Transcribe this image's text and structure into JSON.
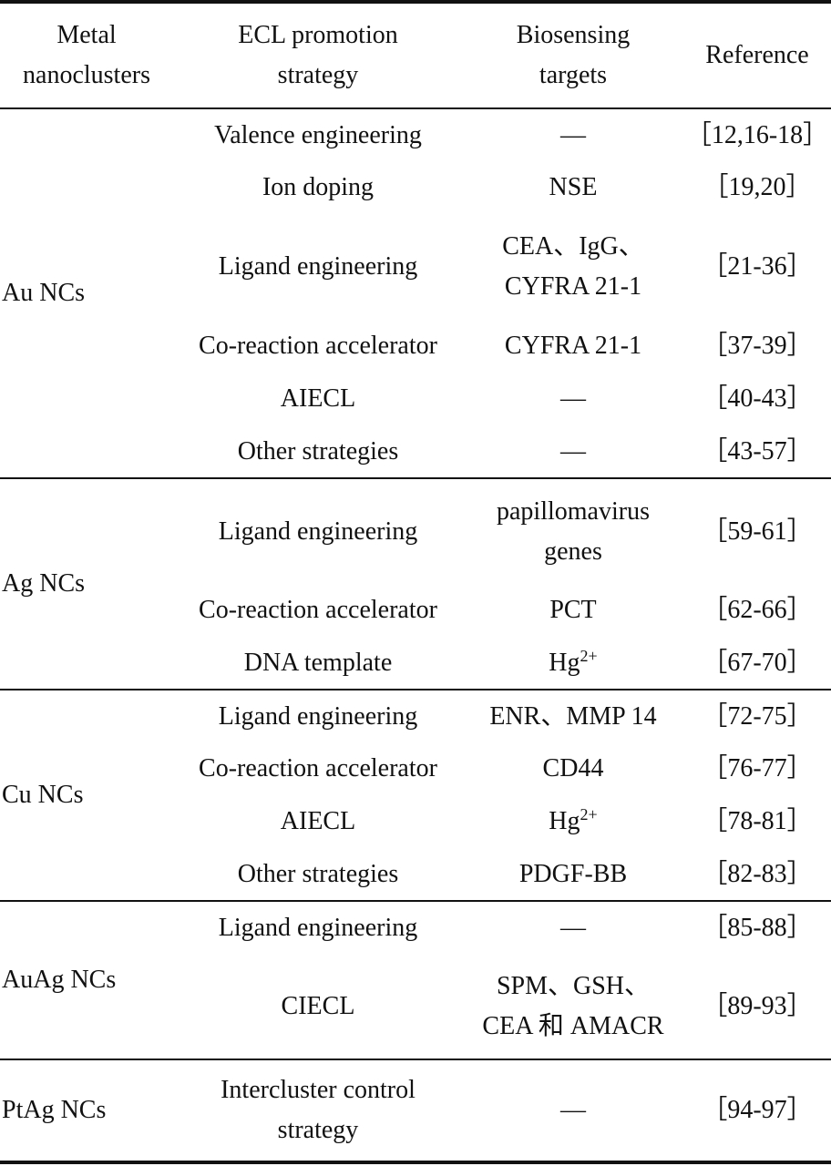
{
  "header": {
    "metal": "Metal nanoclusters",
    "strategy": "ECL promotion strategy",
    "targets": "Biosensing targets",
    "reference": "Reference"
  },
  "groups": [
    {
      "metal": "Au NCs",
      "rows": [
        {
          "strategy": "Valence engineering",
          "target": "—",
          "reference": "［12,16-18］"
        },
        {
          "strategy": "Ion doping",
          "target": "NSE",
          "reference": "［19,20］"
        },
        {
          "strategy": "Ligand engineering",
          "target": "CEA、IgG、CYFRA 21-1",
          "reference": "［21-36］"
        },
        {
          "strategy": "Co-reaction accelerator",
          "target": "CYFRA 21-1",
          "reference": "［37-39］"
        },
        {
          "strategy": "AIECL",
          "target": "—",
          "reference": "［40-43］"
        },
        {
          "strategy": "Other strategies",
          "target": "—",
          "reference": "［43-57］"
        }
      ]
    },
    {
      "metal": "Ag NCs",
      "rows": [
        {
          "strategy": "Ligand engineering",
          "target": "papillomavirus genes",
          "reference": "［59-61］"
        },
        {
          "strategy": "Co-reaction accelerator",
          "target": "PCT",
          "reference": "［62-66］"
        },
        {
          "strategy": "DNA template",
          "target_base": "Hg",
          "target_sup": "2+",
          "reference": "［67-70］"
        }
      ]
    },
    {
      "metal": "Cu NCs",
      "rows": [
        {
          "strategy": "Ligand engineering",
          "target": "ENR、MMP 14",
          "reference": "［72-75］"
        },
        {
          "strategy": "Co-reaction accelerator",
          "target": "CD44",
          "reference": "［76-77］"
        },
        {
          "strategy": "AIECL",
          "target_base": "Hg",
          "target_sup": "2+",
          "reference": "［78-81］"
        },
        {
          "strategy": "Other strategies",
          "target": "PDGF-BB",
          "reference": "［82-83］"
        }
      ]
    },
    {
      "metal": "AuAg NCs",
      "rows": [
        {
          "strategy": "Ligand engineering",
          "target": "—",
          "reference": "［85-88］"
        },
        {
          "strategy": "CIECL",
          "target": "SPM、GSH、CEA 和 AMACR",
          "reference": "［89-93］"
        }
      ]
    },
    {
      "metal": "PtAg NCs",
      "rows": [
        {
          "strategy": "Intercluster control strategy",
          "target": "—",
          "reference": "［94-97］"
        }
      ]
    }
  ]
}
